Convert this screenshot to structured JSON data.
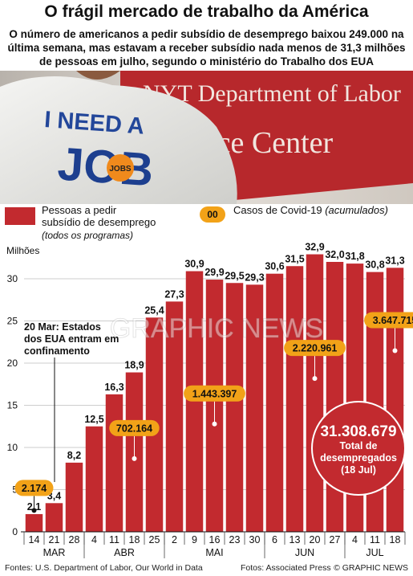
{
  "header": {
    "title": "O frágil mercado de trabalho da América",
    "subtitle": "O número de americanos a pedir subsídio de desemprego baixou 249.000 na última semana, mas estavam a receber subsídio nada menos de 31,3 milhões de pessoas em julho, segundo o ministério do Trabalho dos EUA"
  },
  "photo": {
    "sign_line1": "NYT Department of Labor",
    "sign_line2": "rce Center",
    "shirt_line1": "I NEED A",
    "shirt_line2": "JOB",
    "badge": "JOBS"
  },
  "legend": {
    "bars_line1": "Pessoas a pedir",
    "bars_line2": "subsídio de desemprego",
    "bars_note": "(todos os programas)",
    "covid_chip": "00",
    "covid_label": "Casos de Covid-19",
    "covid_note": "(acumulados)"
  },
  "annotations": {
    "lockdown_line1": "20 Mar: Estados",
    "lockdown_line2": "dos EUA entram em",
    "lockdown_line3": "confinamento",
    "total_value": "31.308.679",
    "total_line1": "Total de",
    "total_line2": "desempregados",
    "total_line3": "(18 Jul)"
  },
  "watermark": "GRAPHIC NEWS",
  "footer": {
    "sources": "Fontes: U.S. Department of Labor, Our World in Data",
    "photos": "Fotos: Associated Press",
    "copyright": "© GRAPHIC NEWS"
  },
  "colors": {
    "bar": "#c22a2f",
    "covid_chip": "#f2a218",
    "title_text": "#111111"
  },
  "chart_data": {
    "type": "bar",
    "ylabel": "Milhões",
    "ylim": [
      0,
      32
    ],
    "yticks": [
      0,
      5,
      10,
      15,
      20,
      25,
      30
    ],
    "categories": [
      "14",
      "21",
      "28",
      "4",
      "11",
      "18",
      "25",
      "2",
      "9",
      "16",
      "23",
      "30",
      "6",
      "13",
      "20",
      "27",
      "4",
      "11",
      "18"
    ],
    "months": [
      {
        "label": "MAR",
        "start": 0,
        "end": 2
      },
      {
        "label": "ABR",
        "start": 3,
        "end": 6
      },
      {
        "label": "MAI",
        "start": 7,
        "end": 11
      },
      {
        "label": "JUN",
        "start": 12,
        "end": 15
      },
      {
        "label": "JUL",
        "start": 16,
        "end": 18
      }
    ],
    "series": [
      {
        "name": "Pessoas a pedir subsídio de desemprego",
        "values": [
          2.1,
          3.4,
          8.2,
          12.5,
          16.3,
          18.9,
          25.4,
          27.3,
          30.9,
          29.9,
          29.5,
          29.3,
          30.6,
          31.5,
          32.9,
          32.0,
          31.8,
          30.8,
          31.3
        ]
      }
    ],
    "value_labels": [
      "2,1",
      "3,4",
      "8,2",
      "12,5",
      "16,3",
      "18,9",
      "25,4",
      "27,3",
      "30,9",
      "29,9",
      "29,5",
      "29,3",
      "30,6",
      "31,5",
      "32,9",
      "32,0",
      "31,8",
      "30,8",
      "31,3"
    ],
    "covid_cases": [
      {
        "index": 0,
        "label": "2.174",
        "value": 5.2
      },
      {
        "index": 5,
        "label": "702.164",
        "value": 12.3
      },
      {
        "index": 9,
        "label": "1.443.397",
        "value": 16.4
      },
      {
        "index": 14,
        "label": "2.220.961",
        "value": 21.8
      },
      {
        "index": 18,
        "label": "3.647.715",
        "value": 25.1
      }
    ]
  }
}
